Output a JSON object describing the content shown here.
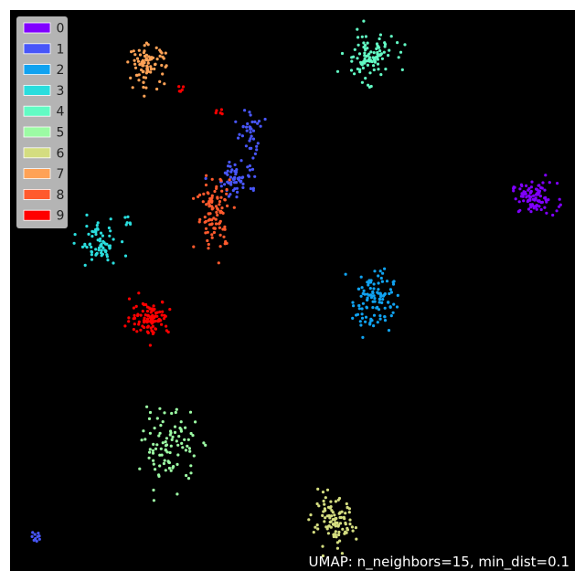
{
  "chart_data": {
    "type": "scatter",
    "title": "",
    "xlabel": "",
    "ylabel": "",
    "xlim": [
      0,
      100
    ],
    "ylim": [
      0,
      100
    ],
    "grid": false,
    "background": "#000000",
    "legend": {
      "placement": "top-left"
    },
    "annotation": "UMAP: n_neighbors=15, min_dist=0.1",
    "series": [
      {
        "name": "0",
        "color": "#8000ff",
        "clusters": [
          {
            "cx": 92.8,
            "cy": 66.4,
            "sx": 2.0,
            "sy": 1.4,
            "n": 90
          }
        ]
      },
      {
        "name": "1",
        "color": "#4856f9",
        "clusters": [
          {
            "cx": 42.5,
            "cy": 78.2,
            "sx": 1.0,
            "sy": 2.0,
            "n": 35
          },
          {
            "cx": 40.5,
            "cy": 70.2,
            "sx": 1.8,
            "sy": 1.7,
            "n": 60
          },
          {
            "cx": 4.7,
            "cy": 6.3,
            "sx": 0.5,
            "sy": 0.5,
            "n": 10
          }
        ]
      },
      {
        "name": "2",
        "color": "#10a2f0",
        "clusters": [
          {
            "cx": 64.3,
            "cy": 48.3,
            "sx": 1.8,
            "sy": 2.8,
            "n": 110
          }
        ]
      },
      {
        "name": "3",
        "color": "#2adddd",
        "clusters": [
          {
            "cx": 15.8,
            "cy": 58.3,
            "sx": 1.8,
            "sy": 1.9,
            "n": 70
          },
          {
            "cx": 20.8,
            "cy": 62.3,
            "sx": 0.4,
            "sy": 0.5,
            "n": 6
          }
        ]
      },
      {
        "name": "4",
        "color": "#62fbc4",
        "clusters": [
          {
            "cx": 63.5,
            "cy": 91.8,
            "sx": 2.2,
            "sy": 2.1,
            "n": 100
          }
        ]
      },
      {
        "name": "5",
        "color": "#9cfba4",
        "clusters": [
          {
            "cx": 28.3,
            "cy": 22.2,
            "sx": 2.4,
            "sy": 3.2,
            "n": 95
          }
        ]
      },
      {
        "name": "6",
        "color": "#d4dd80",
        "clusters": [
          {
            "cx": 57.3,
            "cy": 8.3,
            "sx": 1.9,
            "sy": 2.2,
            "n": 100
          }
        ]
      },
      {
        "name": "7",
        "color": "#ffa256",
        "clusters": [
          {
            "cx": 24.3,
            "cy": 90.3,
            "sx": 1.6,
            "sy": 1.7,
            "n": 85
          }
        ]
      },
      {
        "name": "8",
        "color": "#ff5a2d",
        "clusters": [
          {
            "cx": 36.3,
            "cy": 63.8,
            "sx": 1.6,
            "sy": 3.4,
            "n": 100
          }
        ]
      },
      {
        "name": "9",
        "color": "#ff0000",
        "clusters": [
          {
            "cx": 24.7,
            "cy": 45.3,
            "sx": 1.7,
            "sy": 1.5,
            "n": 100
          },
          {
            "cx": 30.3,
            "cy": 86.0,
            "sx": 0.4,
            "sy": 0.5,
            "n": 6
          },
          {
            "cx": 37.3,
            "cy": 82.0,
            "sx": 0.4,
            "sy": 0.4,
            "n": 5
          }
        ]
      }
    ]
  }
}
